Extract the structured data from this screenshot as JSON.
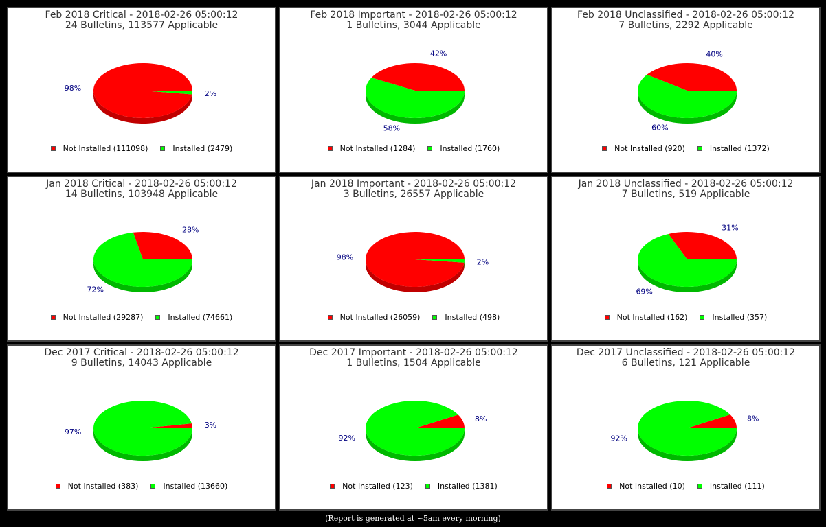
{
  "colors": {
    "not_installed": "#ff0000",
    "installed": "#00ff00",
    "not_installed_side": "#c00000",
    "installed_side": "#00b800",
    "label": "#000080"
  },
  "footer": "(Report is generated at ~5am every morning)",
  "chart_data": [
    {
      "type": "pie",
      "title": "Feb 2018 Critical - 2018-02-26 05:00:12",
      "subtitle": "24 Bulletins, 113577 Applicable",
      "legend_location": "bottom",
      "slices": [
        {
          "label": "Not Installed (111098)",
          "value": 111098,
          "percent_label": "98%"
        },
        {
          "label": "Installed (2479)",
          "value": 2479,
          "percent_label": "2%"
        }
      ]
    },
    {
      "type": "pie",
      "title": "Feb 2018 Important - 2018-02-26 05:00:12",
      "subtitle": "1 Bulletins, 3044 Applicable",
      "legend_location": "bottom",
      "slices": [
        {
          "label": "Not Installed (1284)",
          "value": 1284,
          "percent_label": "42%"
        },
        {
          "label": "Installed (1760)",
          "value": 1760,
          "percent_label": "58%"
        }
      ]
    },
    {
      "type": "pie",
      "title": "Feb 2018 Unclassified - 2018-02-26 05:00:12",
      "subtitle": "7 Bulletins, 2292 Applicable",
      "legend_location": "bottom",
      "slices": [
        {
          "label": "Not Installed (920)",
          "value": 920,
          "percent_label": "40%"
        },
        {
          "label": "Installed (1372)",
          "value": 1372,
          "percent_label": "60%"
        }
      ]
    },
    {
      "type": "pie",
      "title": "Jan 2018 Critical - 2018-02-26 05:00:12",
      "subtitle": "14 Bulletins, 103948 Applicable",
      "legend_location": "bottom",
      "slices": [
        {
          "label": "Not Installed (29287)",
          "value": 29287,
          "percent_label": "28%"
        },
        {
          "label": "Installed (74661)",
          "value": 74661,
          "percent_label": "72%"
        }
      ]
    },
    {
      "type": "pie",
      "title": "Jan 2018 Important - 2018-02-26 05:00:12",
      "subtitle": "3 Bulletins, 26557 Applicable",
      "legend_location": "bottom",
      "slices": [
        {
          "label": "Not Installed (26059)",
          "value": 26059,
          "percent_label": "98%"
        },
        {
          "label": "Installed (498)",
          "value": 498,
          "percent_label": "2%"
        }
      ]
    },
    {
      "type": "pie",
      "title": "Jan 2018 Unclassified - 2018-02-26 05:00:12",
      "subtitle": "7 Bulletins, 519 Applicable",
      "legend_location": "bottom",
      "slices": [
        {
          "label": "Not Installed (162)",
          "value": 162,
          "percent_label": "31%"
        },
        {
          "label": "Installed (357)",
          "value": 357,
          "percent_label": "69%"
        }
      ]
    },
    {
      "type": "pie",
      "title": "Dec 2017 Critical - 2018-02-26 05:00:12",
      "subtitle": "9 Bulletins, 14043 Applicable",
      "legend_location": "bottom",
      "slices": [
        {
          "label": "Not Installed (383)",
          "value": 383,
          "percent_label": "3%"
        },
        {
          "label": "Installed (13660)",
          "value": 13660,
          "percent_label": "97%"
        }
      ]
    },
    {
      "type": "pie",
      "title": "Dec 2017 Important - 2018-02-26 05:00:12",
      "subtitle": "1 Bulletins, 1504 Applicable",
      "legend_location": "bottom",
      "slices": [
        {
          "label": "Not Installed (123)",
          "value": 123,
          "percent_label": "8%"
        },
        {
          "label": "Installed (1381)",
          "value": 1381,
          "percent_label": "92%"
        }
      ]
    },
    {
      "type": "pie",
      "title": "Dec 2017 Unclassified - 2018-02-26 05:00:12",
      "subtitle": "6 Bulletins, 121 Applicable",
      "legend_location": "bottom",
      "slices": [
        {
          "label": "Not Installed (10)",
          "value": 10,
          "percent_label": "8%"
        },
        {
          "label": "Installed (111)",
          "value": 111,
          "percent_label": "92%"
        }
      ]
    }
  ]
}
